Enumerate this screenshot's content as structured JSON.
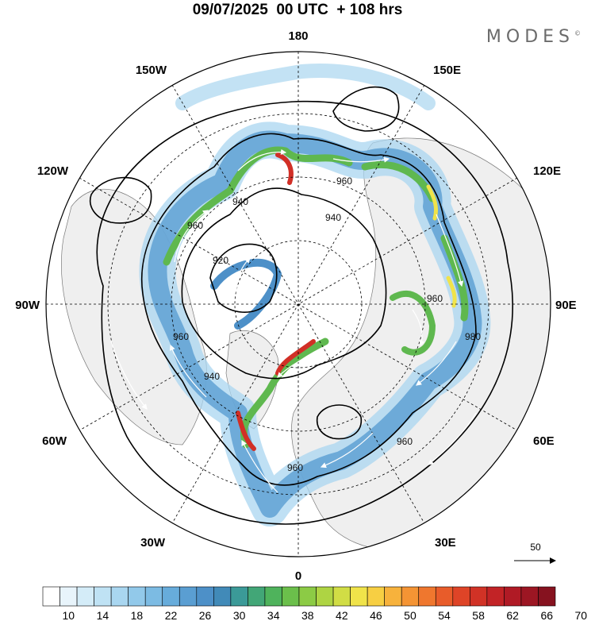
{
  "title": "09/07/2025  00 UTC  + 108 hrs",
  "brand": "MODES",
  "brand_mark": "©",
  "longitude_labels": {
    "top": "180",
    "bottom": "0",
    "left": "90W",
    "right": "90E",
    "upper_left_1": "150W",
    "upper_left_2": "120W",
    "upper_right_1": "150E",
    "upper_right_2": "120E",
    "lower_left_1": "60W",
    "lower_left_2": "30W",
    "lower_right_1": "60E",
    "lower_right_2": "30E"
  },
  "contour_labels": [
    "920",
    "940",
    "940",
    "940",
    "960",
    "960",
    "960",
    "960",
    "960",
    "960",
    "980"
  ],
  "reference_vector_label": "50",
  "colorbar": {
    "tick_labels": [
      "10",
      "14",
      "18",
      "22",
      "26",
      "30",
      "34",
      "38",
      "42",
      "46",
      "50",
      "54",
      "58",
      "62",
      "66",
      "70"
    ],
    "colors": [
      "#ffffff",
      "#e8f4fb",
      "#d4ecf8",
      "#bfe2f4",
      "#a9d6f0",
      "#92c9ea",
      "#7cbbe3",
      "#67acdb",
      "#5a9ed2",
      "#4d90c8",
      "#418ab8",
      "#3b9a98",
      "#42a677",
      "#4fb35c",
      "#6bbf4b",
      "#8ccb45",
      "#aed443",
      "#d1dd45",
      "#f0e34a",
      "#f7cf43",
      "#f7b23c",
      "#f49434",
      "#ef772e",
      "#e85c2a",
      "#de4427",
      "#d13226",
      "#c22326",
      "#b01a25",
      "#9c1623",
      "#86121f"
    ]
  },
  "colors": {
    "land": "#eeeeee",
    "jet_core": "#d12f26",
    "jet_green": "#5fb84f",
    "light_blue": "#a9d6f0"
  }
}
